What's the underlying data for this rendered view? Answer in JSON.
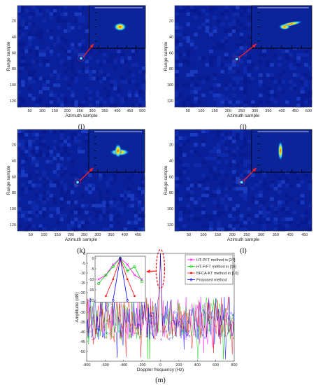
{
  "chart_data": [
    {
      "type": "heatmap",
      "caption": "(i)",
      "xlabel": "Azimuth sample",
      "ylabel": "Range sample",
      "xticks": [
        50,
        100,
        150,
        200,
        250,
        300,
        350,
        400,
        450,
        500
      ],
      "yticks": [
        20,
        40,
        60,
        80,
        100,
        120
      ],
      "xlim": [
        1,
        512
      ],
      "ylim": [
        1,
        128
      ],
      "target": {
        "x": 255,
        "y": 67
      },
      "inset_pattern": "spot"
    },
    {
      "type": "heatmap",
      "caption": "(j)",
      "xlabel": "Azimuth sample",
      "ylabel": "Range sample",
      "xticks": [
        50,
        100,
        150,
        200,
        250,
        300,
        350,
        400,
        450,
        500
      ],
      "yticks": [
        20,
        40,
        60,
        80,
        100,
        120
      ],
      "xlim": [
        1,
        512
      ],
      "ylim": [
        1,
        128
      ],
      "target": {
        "x": 232,
        "y": 68
      },
      "inset_pattern": "streak"
    },
    {
      "type": "heatmap",
      "caption": "(k)",
      "xlabel": "Azimuth sample",
      "ylabel": "Range sample",
      "xticks": [
        50,
        100,
        150,
        200,
        250,
        300,
        350,
        400,
        450
      ],
      "yticks": [
        20,
        40,
        60,
        80,
        100,
        120
      ],
      "xlim": [
        1,
        475
      ],
      "ylim": [
        1,
        128
      ],
      "target": {
        "x": 225,
        "y": 67
      },
      "inset_pattern": "cross"
    },
    {
      "type": "heatmap",
      "caption": "(l)",
      "xlabel": "Azimuth sample",
      "ylabel": "Range sample",
      "xticks": [
        50,
        100,
        150,
        200,
        250,
        300,
        350,
        400,
        450
      ],
      "yticks": [
        20,
        40,
        60,
        80,
        100,
        120
      ],
      "xlim": [
        1,
        475
      ],
      "ylim": [
        1,
        128
      ],
      "target": {
        "x": 232,
        "y": 67
      },
      "inset_pattern": "vertical"
    },
    {
      "type": "line",
      "caption": "(m)",
      "xlabel": "Doppler frequency (Hz)",
      "ylabel": "Amplitude (dB)",
      "xticks": [
        -800,
        -600,
        -400,
        -200,
        0,
        200,
        400,
        600,
        800
      ],
      "yticks": [
        0,
        -5,
        -10,
        -15,
        -20,
        -25,
        -30,
        -35,
        -40,
        -45,
        -50
      ],
      "xlim": [
        -800,
        800
      ],
      "ylim": [
        -55,
        0
      ],
      "inset": {
        "yticks": [
          0,
          -5,
          -10,
          -15,
          -20
        ],
        "ylim": [
          -20,
          0
        ]
      },
      "series": [
        {
          "name": "HT-PFT method in [27]",
          "color": "#ff00ff",
          "marker": "x",
          "peak_x": 0,
          "inset_x": [
            -6,
            -4,
            -2,
            0,
            2,
            4,
            6
          ],
          "inset_y": [
            -10,
            -8,
            -3,
            0,
            -3,
            -8,
            -10
          ]
        },
        {
          "name": "HT-FrFT method in [16]",
          "color": "#00cc00",
          "marker": "circle",
          "peak_x": 0,
          "inset_x": [
            -6,
            -4,
            -2,
            0,
            2,
            4,
            6
          ],
          "inset_y": [
            -12,
            -8,
            -4,
            0,
            -6,
            -4,
            -11
          ]
        },
        {
          "name": "BFCA-KT method in [10]",
          "color": "#ff0000",
          "marker": "star",
          "peak_x": 0,
          "inset_x": [
            -4,
            -2,
            0,
            2,
            4
          ],
          "inset_y": [
            -18,
            -10,
            0,
            -10,
            -18
          ]
        },
        {
          "name": "Proposed method",
          "color": "#0000ff",
          "marker": "diamond",
          "peak_x": 0,
          "inset_x": [
            -2,
            0,
            2
          ],
          "inset_y": [
            -20,
            0,
            -20
          ]
        }
      ]
    }
  ]
}
